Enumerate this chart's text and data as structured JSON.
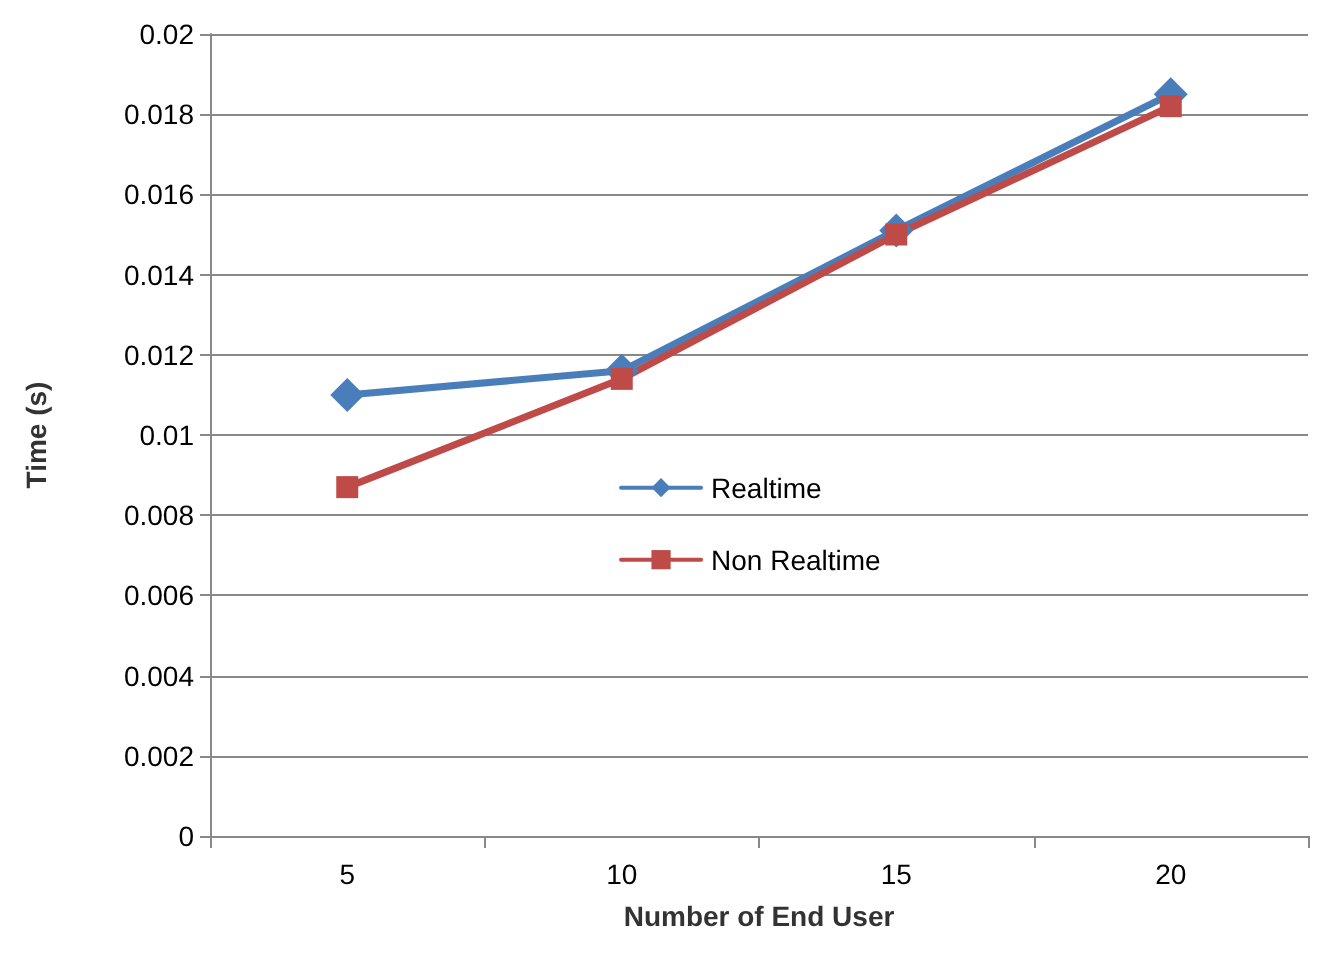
{
  "chart_data": {
    "type": "line",
    "xlabel": "Number of End User",
    "ylabel": "Time (s)",
    "categories": [
      "5",
      "10",
      "15",
      "20"
    ],
    "series": [
      {
        "name": "Realtime",
        "color": "#4a7ebb",
        "marker": "diamond",
        "values": [
          0.011,
          0.0116,
          0.0151,
          0.0185
        ]
      },
      {
        "name": "Non Realtime",
        "color": "#be4b48",
        "marker": "square",
        "values": [
          0.0087,
          0.0114,
          0.015,
          0.0182
        ]
      }
    ],
    "ylim": [
      0,
      0.02
    ],
    "yticks": [
      0,
      0.002,
      0.004,
      0.006,
      0.008,
      0.01,
      0.012,
      0.014,
      0.016,
      0.018,
      0.02
    ],
    "grid": "y",
    "legend": "center",
    "line_style": "solid"
  }
}
